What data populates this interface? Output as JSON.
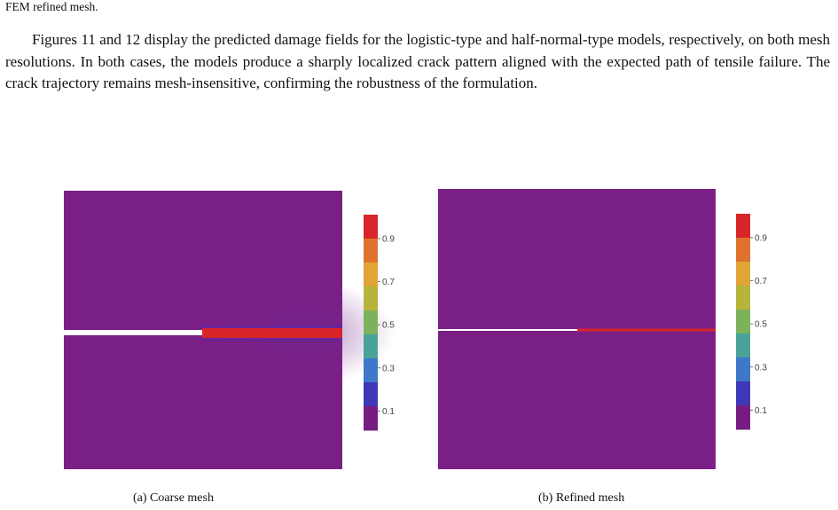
{
  "header": {
    "caption_tail": "FEM refined mesh."
  },
  "body": {
    "paragraph": "Figures 11 and 12 display the predicted damage fields for the logistic-type and half-normal-type models, respectively, on both mesh resolutions. In both cases, the models produce a sharply localized crack pattern aligned with the expected path of tensile failure.  The crack trajectory remains mesh-insensitive, confirming the robustness of the formulation."
  },
  "figures": [
    {
      "caption": "(a) Coarse mesh",
      "colorbar_ticks": [
        "0.9",
        "0.7",
        "0.5",
        "0.3",
        "0.1"
      ]
    },
    {
      "caption": "(b) Refined mesh",
      "colorbar_ticks": [
        "0.9",
        "0.7",
        "0.5",
        "0.3",
        "0.1"
      ]
    }
  ],
  "colors": {
    "background_field": "#7a1f86",
    "crack": "#d9242a",
    "notch": "#ffffff",
    "colorbar": [
      "#d7252b",
      "#e0722f",
      "#e1a437",
      "#b7b43d",
      "#7db15b",
      "#49a39a",
      "#3f78c9",
      "#3f38b7",
      "#771c83"
    ]
  }
}
